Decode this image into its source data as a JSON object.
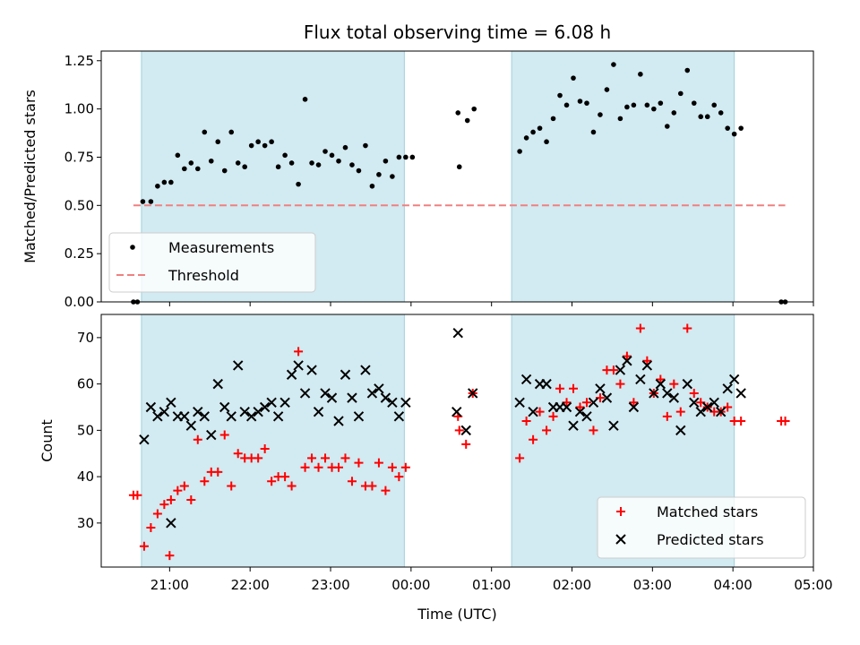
{
  "chart_data": [
    {
      "type": "scatter",
      "title": "Flux total observing time = 6.08 h",
      "xlabel": "",
      "ylabel": "Matched/Predicted stars",
      "x_unit": "time (UTC)",
      "xlim": [
        "20:09",
        "05:00"
      ],
      "ylim": [
        0,
        1.3
      ],
      "yticks": [
        "0.00",
        "0.25",
        "0.50",
        "0.75",
        "1.00",
        "1.25"
      ],
      "shaded_spans": [
        [
          "20:39",
          "23:55"
        ],
        [
          "01:15",
          "04:01"
        ]
      ],
      "shade_color": "#add8e6",
      "legend_position": "lower-left",
      "series": [
        {
          "name": "Measurements",
          "marker": "dot",
          "color": "#000000",
          "points": [
            [
              "20:33",
              0.0
            ],
            [
              "20:36",
              0.0
            ],
            [
              "20:40",
              0.52
            ],
            [
              "20:46",
              0.52
            ],
            [
              "20:51",
              0.6
            ],
            [
              "20:56",
              0.62
            ],
            [
              "21:01",
              0.62
            ],
            [
              "21:06",
              0.76
            ],
            [
              "21:11",
              0.69
            ],
            [
              "21:16",
              0.72
            ],
            [
              "21:21",
              0.69
            ],
            [
              "21:26",
              0.88
            ],
            [
              "21:31",
              0.73
            ],
            [
              "21:36",
              0.83
            ],
            [
              "21:41",
              0.68
            ],
            [
              "21:46",
              0.88
            ],
            [
              "21:51",
              0.72
            ],
            [
              "21:56",
              0.7
            ],
            [
              "22:01",
              0.81
            ],
            [
              "22:06",
              0.83
            ],
            [
              "22:11",
              0.81
            ],
            [
              "22:16",
              0.83
            ],
            [
              "22:21",
              0.7
            ],
            [
              "22:26",
              0.76
            ],
            [
              "22:31",
              0.72
            ],
            [
              "22:36",
              0.61
            ],
            [
              "22:41",
              1.05
            ],
            [
              "22:46",
              0.72
            ],
            [
              "22:51",
              0.71
            ],
            [
              "22:56",
              0.78
            ],
            [
              "23:01",
              0.76
            ],
            [
              "23:06",
              0.73
            ],
            [
              "23:11",
              0.8
            ],
            [
              "23:16",
              0.71
            ],
            [
              "23:21",
              0.68
            ],
            [
              "23:26",
              0.81
            ],
            [
              "23:31",
              0.6
            ],
            [
              "23:36",
              0.66
            ],
            [
              "23:41",
              0.73
            ],
            [
              "23:46",
              0.65
            ],
            [
              "23:51",
              0.75
            ],
            [
              "23:56",
              0.75
            ],
            [
              "00:01",
              0.75
            ],
            [
              "00:35",
              0.98
            ],
            [
              "00:36",
              0.7
            ],
            [
              "00:42",
              0.94
            ],
            [
              "00:47",
              1.0
            ],
            [
              "01:21",
              0.78
            ],
            [
              "01:26",
              0.85
            ],
            [
              "01:31",
              0.88
            ],
            [
              "01:36",
              0.9
            ],
            [
              "01:41",
              0.83
            ],
            [
              "01:46",
              0.95
            ],
            [
              "01:51",
              1.07
            ],
            [
              "01:56",
              1.02
            ],
            [
              "02:01",
              1.16
            ],
            [
              "02:06",
              1.04
            ],
            [
              "02:11",
              1.03
            ],
            [
              "02:16",
              0.88
            ],
            [
              "02:21",
              0.97
            ],
            [
              "02:26",
              1.1
            ],
            [
              "02:31",
              1.23
            ],
            [
              "02:36",
              0.95
            ],
            [
              "02:41",
              1.01
            ],
            [
              "02:46",
              1.02
            ],
            [
              "02:51",
              1.18
            ],
            [
              "02:56",
              1.02
            ],
            [
              "03:01",
              1.0
            ],
            [
              "03:06",
              1.03
            ],
            [
              "03:11",
              0.91
            ],
            [
              "03:16",
              0.98
            ],
            [
              "03:21",
              1.08
            ],
            [
              "03:26",
              1.2
            ],
            [
              "03:31",
              1.03
            ],
            [
              "03:36",
              0.96
            ],
            [
              "03:41",
              0.96
            ],
            [
              "03:46",
              1.02
            ],
            [
              "03:51",
              0.98
            ],
            [
              "03:56",
              0.9
            ],
            [
              "04:01",
              0.87
            ],
            [
              "04:06",
              0.9
            ],
            [
              "04:36",
              0.0
            ],
            [
              "04:39",
              0.0
            ]
          ]
        },
        {
          "name": "Threshold",
          "marker": "dashed-line",
          "color": "#f08080",
          "points": [
            [
              "20:33",
              0.5
            ],
            [
              "04:39",
              0.5
            ]
          ]
        }
      ]
    },
    {
      "type": "scatter",
      "title": "",
      "xlabel": "Time (UTC)",
      "ylabel": "Count",
      "x_unit": "time (UTC)",
      "xlim": [
        "20:09",
        "05:00"
      ],
      "ylim": [
        20.5,
        75
      ],
      "xticks": [
        "21:00",
        "22:00",
        "23:00",
        "00:00",
        "01:00",
        "02:00",
        "03:00",
        "04:00",
        "05:00"
      ],
      "yticks": [
        "30",
        "40",
        "50",
        "60",
        "70"
      ],
      "shaded_spans": [
        [
          "20:39",
          "23:55"
        ],
        [
          "01:15",
          "04:01"
        ]
      ],
      "shade_color": "#add8e6",
      "legend_position": "lower-right",
      "series": [
        {
          "name": "Matched stars",
          "marker": "plus",
          "color": "#ff0000",
          "points": [
            [
              "20:33",
              36
            ],
            [
              "20:36",
              36
            ],
            [
              "20:41",
              25
            ],
            [
              "20:46",
              29
            ],
            [
              "20:51",
              32
            ],
            [
              "20:56",
              34
            ],
            [
              "21:01",
              35
            ],
            [
              "21:00",
              23
            ],
            [
              "21:06",
              37
            ],
            [
              "21:11",
              38
            ],
            [
              "21:16",
              35
            ],
            [
              "21:21",
              48
            ],
            [
              "21:26",
              39
            ],
            [
              "21:31",
              41
            ],
            [
              "21:36",
              41
            ],
            [
              "21:41",
              49
            ],
            [
              "21:46",
              38
            ],
            [
              "21:51",
              45
            ],
            [
              "21:56",
              44
            ],
            [
              "22:01",
              44
            ],
            [
              "22:06",
              44
            ],
            [
              "22:11",
              46
            ],
            [
              "22:16",
              39
            ],
            [
              "22:21",
              40
            ],
            [
              "22:26",
              40
            ],
            [
              "22:31",
              38
            ],
            [
              "22:36",
              67
            ],
            [
              "22:41",
              42
            ],
            [
              "22:46",
              44
            ],
            [
              "22:51",
              42
            ],
            [
              "22:56",
              44
            ],
            [
              "23:01",
              42
            ],
            [
              "23:06",
              42
            ],
            [
              "23:11",
              44
            ],
            [
              "23:16",
              39
            ],
            [
              "23:21",
              43
            ],
            [
              "23:26",
              38
            ],
            [
              "23:31",
              38
            ],
            [
              "23:36",
              43
            ],
            [
              "23:41",
              37
            ],
            [
              "23:46",
              42
            ],
            [
              "23:51",
              40
            ],
            [
              "23:56",
              42
            ],
            [
              "00:35",
              53
            ],
            [
              "00:36",
              50
            ],
            [
              "00:41",
              47
            ],
            [
              "00:46",
              58
            ],
            [
              "01:21",
              44
            ],
            [
              "01:26",
              52
            ],
            [
              "01:31",
              48
            ],
            [
              "01:36",
              54
            ],
            [
              "01:41",
              50
            ],
            [
              "01:46",
              53
            ],
            [
              "01:51",
              59
            ],
            [
              "01:56",
              56
            ],
            [
              "02:01",
              59
            ],
            [
              "02:06",
              55
            ],
            [
              "02:11",
              56
            ],
            [
              "02:16",
              50
            ],
            [
              "02:21",
              57
            ],
            [
              "02:26",
              63
            ],
            [
              "02:31",
              63
            ],
            [
              "02:36",
              60
            ],
            [
              "02:41",
              66
            ],
            [
              "02:46",
              56
            ],
            [
              "02:51",
              72
            ],
            [
              "02:56",
              65
            ],
            [
              "03:01",
              58
            ],
            [
              "03:06",
              61
            ],
            [
              "03:11",
              53
            ],
            [
              "03:16",
              60
            ],
            [
              "03:21",
              54
            ],
            [
              "03:26",
              72
            ],
            [
              "03:31",
              58
            ],
            [
              "03:36",
              56
            ],
            [
              "03:41",
              55
            ],
            [
              "03:46",
              54
            ],
            [
              "03:51",
              54
            ],
            [
              "03:56",
              55
            ],
            [
              "04:01",
              52
            ],
            [
              "04:06",
              52
            ],
            [
              "04:36",
              52
            ],
            [
              "04:39",
              52
            ]
          ]
        },
        {
          "name": "Predicted stars",
          "marker": "x",
          "color": "#000000",
          "points": [
            [
              "20:41",
              48
            ],
            [
              "20:46",
              55
            ],
            [
              "20:51",
              53
            ],
            [
              "20:56",
              54
            ],
            [
              "21:01",
              56
            ],
            [
              "21:01",
              30
            ],
            [
              "21:06",
              53
            ],
            [
              "21:11",
              53
            ],
            [
              "21:16",
              51
            ],
            [
              "21:21",
              54
            ],
            [
              "21:26",
              53
            ],
            [
              "21:31",
              49
            ],
            [
              "21:36",
              60
            ],
            [
              "21:41",
              55
            ],
            [
              "21:46",
              53
            ],
            [
              "21:51",
              64
            ],
            [
              "21:56",
              54
            ],
            [
              "22:01",
              53
            ],
            [
              "22:06",
              54
            ],
            [
              "22:11",
              55
            ],
            [
              "22:16",
              56
            ],
            [
              "22:21",
              53
            ],
            [
              "22:26",
              56
            ],
            [
              "22:31",
              62
            ],
            [
              "22:36",
              64
            ],
            [
              "22:41",
              58
            ],
            [
              "22:46",
              63
            ],
            [
              "22:51",
              54
            ],
            [
              "22:56",
              58
            ],
            [
              "23:01",
              57
            ],
            [
              "23:06",
              52
            ],
            [
              "23:11",
              62
            ],
            [
              "23:16",
              57
            ],
            [
              "23:21",
              53
            ],
            [
              "23:26",
              63
            ],
            [
              "23:31",
              58
            ],
            [
              "23:36",
              59
            ],
            [
              "23:41",
              57
            ],
            [
              "23:46",
              56
            ],
            [
              "23:51",
              53
            ],
            [
              "23:56",
              56
            ],
            [
              "00:35",
              71
            ],
            [
              "00:34",
              54
            ],
            [
              "00:41",
              50
            ],
            [
              "00:46",
              58
            ],
            [
              "01:21",
              56
            ],
            [
              "01:26",
              61
            ],
            [
              "01:31",
              54
            ],
            [
              "01:36",
              60
            ],
            [
              "01:41",
              60
            ],
            [
              "01:46",
              55
            ],
            [
              "01:51",
              55
            ],
            [
              "01:56",
              55
            ],
            [
              "02:01",
              51
            ],
            [
              "02:06",
              54
            ],
            [
              "02:11",
              53
            ],
            [
              "02:16",
              56
            ],
            [
              "02:21",
              59
            ],
            [
              "02:26",
              57
            ],
            [
              "02:31",
              51
            ],
            [
              "02:36",
              63
            ],
            [
              "02:41",
              65
            ],
            [
              "02:46",
              55
            ],
            [
              "02:51",
              61
            ],
            [
              "02:56",
              64
            ],
            [
              "03:01",
              58
            ],
            [
              "03:06",
              60
            ],
            [
              "03:11",
              58
            ],
            [
              "03:16",
              57
            ],
            [
              "03:21",
              50
            ],
            [
              "03:26",
              60
            ],
            [
              "03:31",
              56
            ],
            [
              "03:36",
              54
            ],
            [
              "03:41",
              55
            ],
            [
              "03:46",
              56
            ],
            [
              "03:51",
              54
            ],
            [
              "03:56",
              59
            ],
            [
              "04:01",
              61
            ],
            [
              "04:06",
              58
            ]
          ]
        }
      ]
    }
  ]
}
